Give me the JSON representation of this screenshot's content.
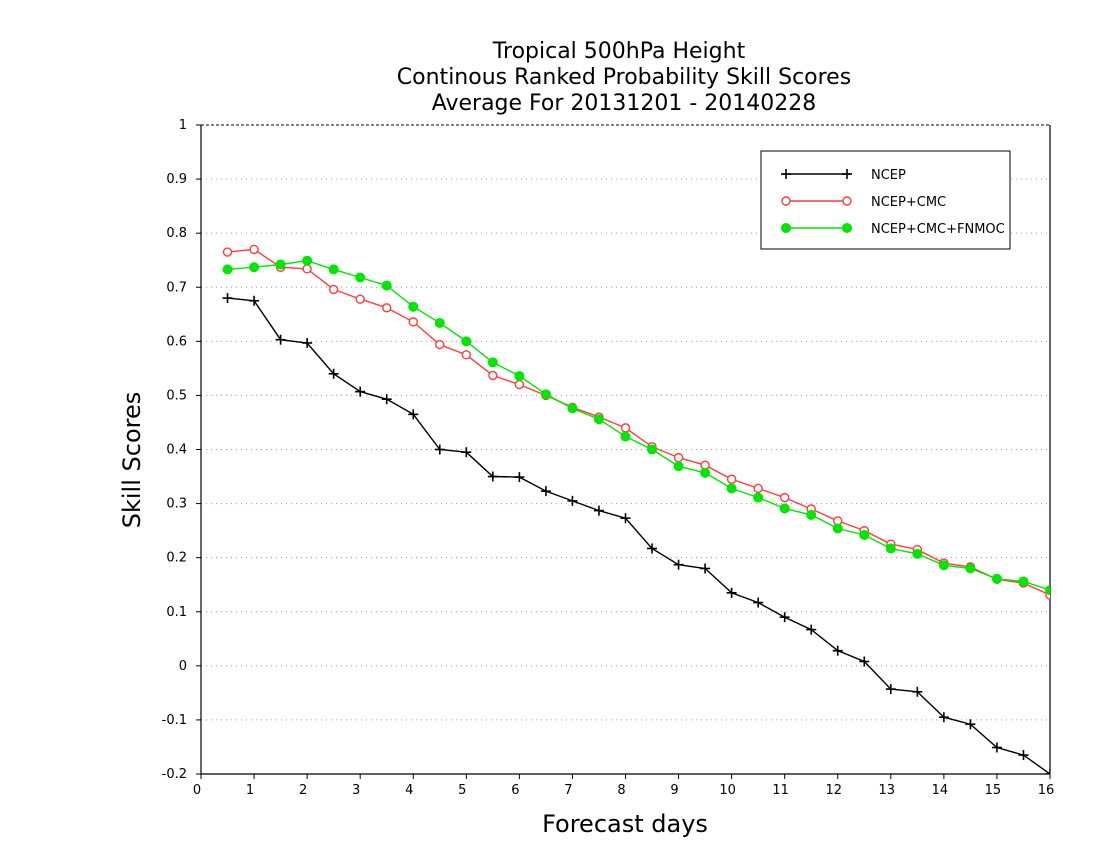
{
  "chart_data": {
    "type": "line",
    "title": [
      "Tropical 500hPa Height",
      "Continous Ranked Probability Skill Scores",
      "Average For 20131201 - 20140228"
    ],
    "xlabel": "Forecast days",
    "ylabel": "Skill Scores",
    "xlim": [
      0,
      16
    ],
    "ylim": [
      -0.2,
      1
    ],
    "xticks": [
      0,
      1,
      2,
      3,
      4,
      5,
      6,
      7,
      8,
      9,
      10,
      11,
      12,
      13,
      14,
      15,
      16
    ],
    "xtick_labels": [
      "0",
      "1",
      "2",
      "3",
      "4",
      "5",
      "6",
      "7",
      "8",
      "9",
      "10",
      "11",
      "12",
      "13",
      "14",
      "15",
      "16"
    ],
    "yticks": [
      -0.2,
      -0.1,
      0,
      0.1,
      0.2,
      0.3,
      0.4,
      0.5,
      0.6,
      0.7,
      0.8,
      0.9,
      1
    ],
    "ytick_labels": [
      "-0.2",
      "-0.1",
      "0",
      "0.1",
      "0.2",
      "0.3",
      "0.4",
      "0.5",
      "0.6",
      "0.7",
      "0.8",
      "0.9",
      "1"
    ],
    "grid": "horizontal dotted",
    "legend_position": "top-right",
    "x": [
      0.5,
      1,
      1.5,
      2,
      2.5,
      3,
      3.5,
      4,
      4.5,
      5,
      5.5,
      6,
      6.5,
      7,
      7.5,
      8,
      8.5,
      9,
      9.5,
      10,
      10.5,
      11,
      11.5,
      12,
      12.5,
      13,
      13.5,
      14,
      14.5,
      15,
      15.5,
      16
    ],
    "series": [
      {
        "name": "NCEP",
        "color": "#000000",
        "marker": "plus",
        "values": [
          0.68,
          0.675,
          0.603,
          0.597,
          0.54,
          0.507,
          0.493,
          0.465,
          0.4,
          0.395,
          0.35,
          0.349,
          0.323,
          0.305,
          0.287,
          0.273,
          0.217,
          0.187,
          0.18,
          0.135,
          0.117,
          0.09,
          0.067,
          0.028,
          0.008,
          -0.043,
          -0.048,
          -0.095,
          -0.108,
          -0.151,
          -0.165,
          -0.2
        ]
      },
      {
        "name": "NCEP+CMC",
        "color": "#ff3b3b",
        "marker": "open-circle",
        "values": [
          0.765,
          0.77,
          0.737,
          0.734,
          0.696,
          0.678,
          0.662,
          0.636,
          0.594,
          0.575,
          0.537,
          0.52,
          0.5,
          0.478,
          0.46,
          0.44,
          0.405,
          0.385,
          0.371,
          0.345,
          0.328,
          0.311,
          0.29,
          0.268,
          0.25,
          0.225,
          0.215,
          0.19,
          0.183,
          0.16,
          0.153,
          0.131
        ]
      },
      {
        "name": "NCEP+CMC+FNMOC",
        "color": "#00e600",
        "marker": "filled-circle",
        "values": [
          0.733,
          0.737,
          0.742,
          0.749,
          0.733,
          0.718,
          0.703,
          0.664,
          0.634,
          0.6,
          0.561,
          0.536,
          0.502,
          0.476,
          0.456,
          0.424,
          0.4,
          0.369,
          0.357,
          0.328,
          0.311,
          0.291,
          0.279,
          0.254,
          0.242,
          0.217,
          0.207,
          0.186,
          0.18,
          0.161,
          0.156,
          0.14
        ]
      }
    ]
  }
}
